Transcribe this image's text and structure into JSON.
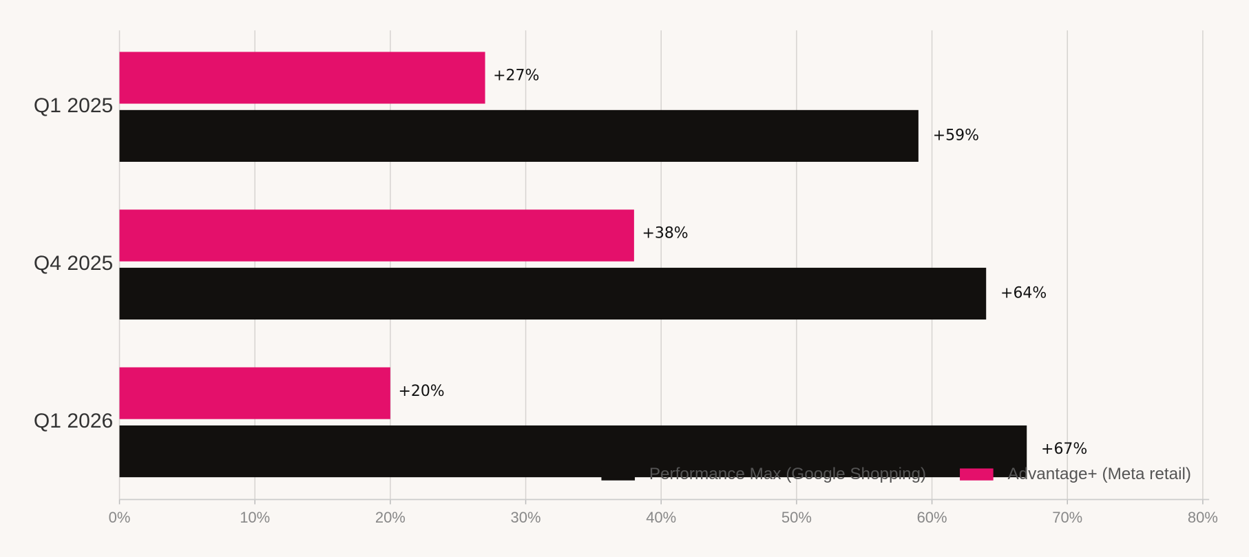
{
  "chart_data": {
    "type": "barh",
    "categories": [
      "Q1 2025",
      "Q4 2025",
      "Q1 2026"
    ],
    "series": [
      {
        "name": "Performance Max (Google Shopping)",
        "color": "#12100e",
        "values": [
          59,
          64,
          67
        ],
        "value_labels": [
          "+59%",
          "+64%",
          "+67%"
        ]
      },
      {
        "name": "Advantage+ (Meta retail)",
        "color": "#e4106b",
        "values": [
          27,
          38,
          20
        ],
        "value_labels": [
          "+27%",
          "+38%",
          "+20%"
        ]
      }
    ],
    "xlim": [
      0,
      80
    ],
    "xticks": [
      {
        "value": 0,
        "label": "0%"
      },
      {
        "value": 10,
        "label": "10%"
      },
      {
        "value": 20,
        "label": "20%"
      },
      {
        "value": 30,
        "label": "30%"
      },
      {
        "value": 40,
        "label": "40%"
      },
      {
        "value": 50,
        "label": "50%"
      },
      {
        "value": 60,
        "label": "60%"
      },
      {
        "value": 70,
        "label": "70%"
      },
      {
        "value": 80,
        "label": "80%"
      }
    ],
    "grid": true,
    "legend": "bottom-right"
  }
}
